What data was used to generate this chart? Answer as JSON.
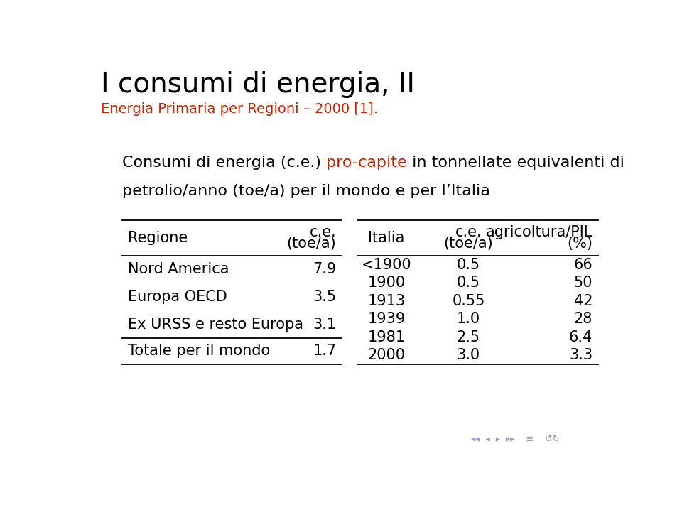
{
  "title": "I consumi di energia, II",
  "subtitle": "Energia Primaria per Regioni – 2000 [1].",
  "title_color": "#000000",
  "subtitle_color": "#cc2200",
  "desc_part1": "Consumi di energia (c.e.) ",
  "desc_part2": "pro-capite",
  "desc_part3": " in tonnellate equivalenti di",
  "desc_line2": "petrolio/anno (toe/a) per il mondo e per l’Italia",
  "left_col1_header": "Regione",
  "left_col2_header_line1": "c.e.",
  "left_col2_header_line2": "(toe/a)",
  "left_rows": [
    [
      "Nord America",
      "7.9"
    ],
    [
      "Europa OECD",
      "3.5"
    ],
    [
      "Ex URSS e resto Europa",
      "3.1"
    ],
    [
      "Totale per il mondo",
      "1.7"
    ]
  ],
  "right_col1_header": "Italia",
  "right_col2_header_line1": "c.e.",
  "right_col2_header_line2": "(toe/a)",
  "right_col3_header_line1": "agricoltura/PIL",
  "right_col3_header_line2": "(%)",
  "right_rows": [
    [
      "<1900",
      "0.5",
      "66"
    ],
    [
      "1900",
      "0.5",
      "50"
    ],
    [
      "1913",
      "0.55",
      "42"
    ],
    [
      "1939",
      "1.0",
      "28"
    ],
    [
      "1981",
      "2.5",
      "6.4"
    ],
    [
      "2000",
      "3.0",
      "3.3"
    ]
  ],
  "bg_color": "#ffffff",
  "text_color": "#000000",
  "line_color": "#000000",
  "nav_color": "#9999cc",
  "font_size_title": 28,
  "font_size_subtitle": 14,
  "font_size_desc": 16,
  "font_size_table": 15,
  "font_size_nav": 9
}
